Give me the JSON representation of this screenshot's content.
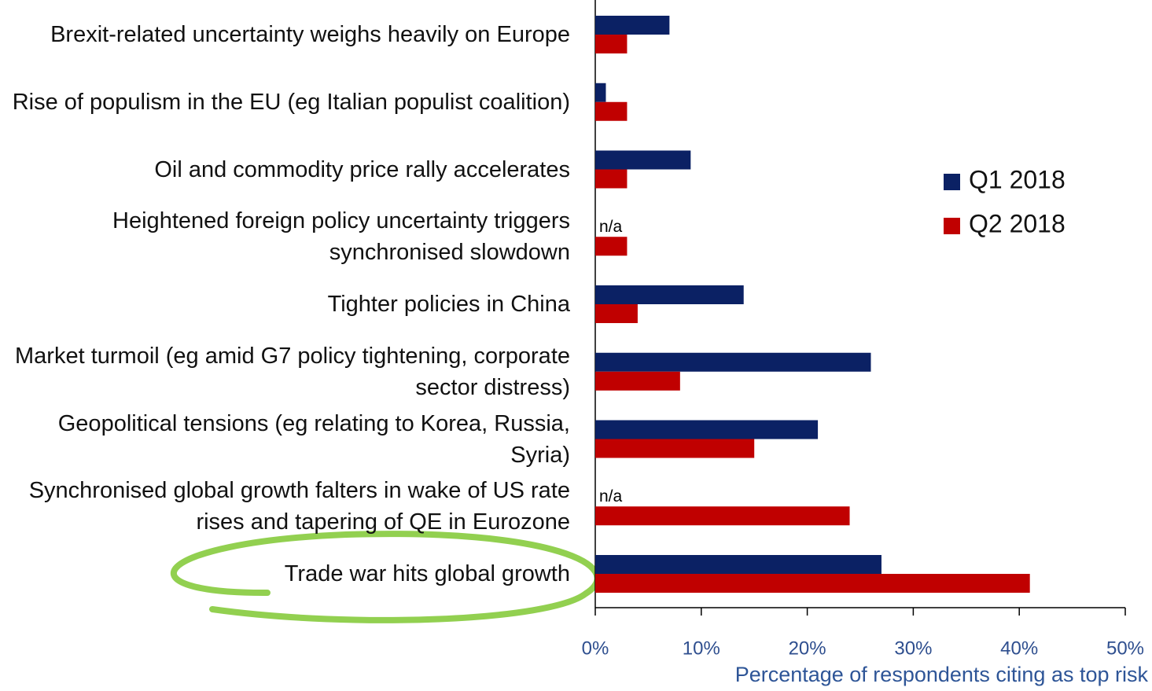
{
  "chart_data": {
    "type": "bar",
    "orientation": "horizontal",
    "categories": [
      "Brexit-related uncertainty weighs heavily on Europe",
      "Rise of populism in the EU (eg Italian populist coalition)",
      "Oil and commodity price rally accelerates",
      "Heightened foreign policy uncertainty triggers synchronised slowdown",
      "Tighter policies in China",
      "Market turmoil (eg amid G7 policy tightening, corporate sector distress)",
      "Geopolitical tensions (eg relating to Korea, Russia, Syria)",
      "Synchronised global growth falters in wake of US rate rises and tapering of QE in Eurozone",
      "Trade war hits global growth"
    ],
    "series": [
      {
        "name": "Q1 2018",
        "color": "#0b2164",
        "values": [
          7,
          1,
          9,
          null,
          14,
          26,
          21,
          null,
          27
        ],
        "value_labels": [
          null,
          null,
          null,
          "n/a",
          null,
          null,
          null,
          "n/a",
          null
        ]
      },
      {
        "name": "Q2 2018",
        "color": "#c00000",
        "values": [
          3,
          3,
          3,
          3,
          4,
          8,
          15,
          24,
          41
        ]
      }
    ],
    "xlabel": "Percentage of respondents citing as top risk",
    "xlim": [
      0,
      50
    ],
    "xticks": [
      {
        "value": 0,
        "label": "0%"
      },
      {
        "value": 10,
        "label": "10%"
      },
      {
        "value": 20,
        "label": "20%"
      },
      {
        "value": 30,
        "label": "30%"
      },
      {
        "value": 40,
        "label": "40%"
      },
      {
        "value": 50,
        "label": "50%"
      }
    ],
    "legend": "right"
  }
}
